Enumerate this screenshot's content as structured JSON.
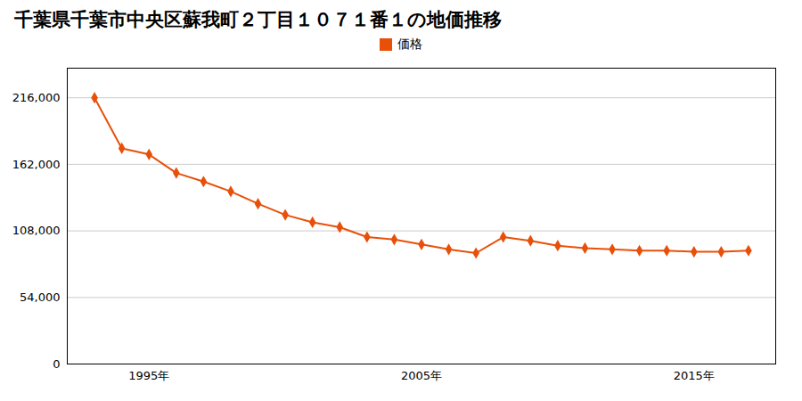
{
  "chart_data": {
    "type": "line",
    "title": "千葉県千葉市中央区蘇我町２丁目１０７１番１の地価推移",
    "x": [
      1993,
      1994,
      1995,
      1996,
      1997,
      1998,
      1999,
      2000,
      2001,
      2002,
      2003,
      2004,
      2005,
      2006,
      2007,
      2008,
      2009,
      2010,
      2011,
      2012,
      2013,
      2014,
      2015,
      2016,
      2017
    ],
    "series": [
      {
        "name": "価格",
        "color": "#e8500a",
        "marker": "diamond",
        "values": [
          216000,
          175000,
          170000,
          155000,
          148000,
          140000,
          130000,
          121000,
          115000,
          111000,
          103000,
          101000,
          97000,
          93000,
          90000,
          103000,
          100000,
          96000,
          94000,
          93000,
          92000,
          92000,
          91000,
          91000,
          92000
        ]
      }
    ],
    "xlim": [
      1992,
      2018
    ],
    "xticks": [
      {
        "value": 1995,
        "label": "1995年"
      },
      {
        "value": 2005,
        "label": "2005年"
      },
      {
        "value": 2015,
        "label": "2015年"
      }
    ],
    "ylim": [
      0,
      240000
    ],
    "yticks": [
      0,
      {
        "value": 54000,
        "label": "54,000"
      },
      {
        "value": 108000,
        "label": "108,000"
      },
      {
        "value": 162000,
        "label": "162,000"
      },
      {
        "value": 216000,
        "label": "216,000"
      }
    ],
    "grid": true,
    "legend": "top"
  }
}
